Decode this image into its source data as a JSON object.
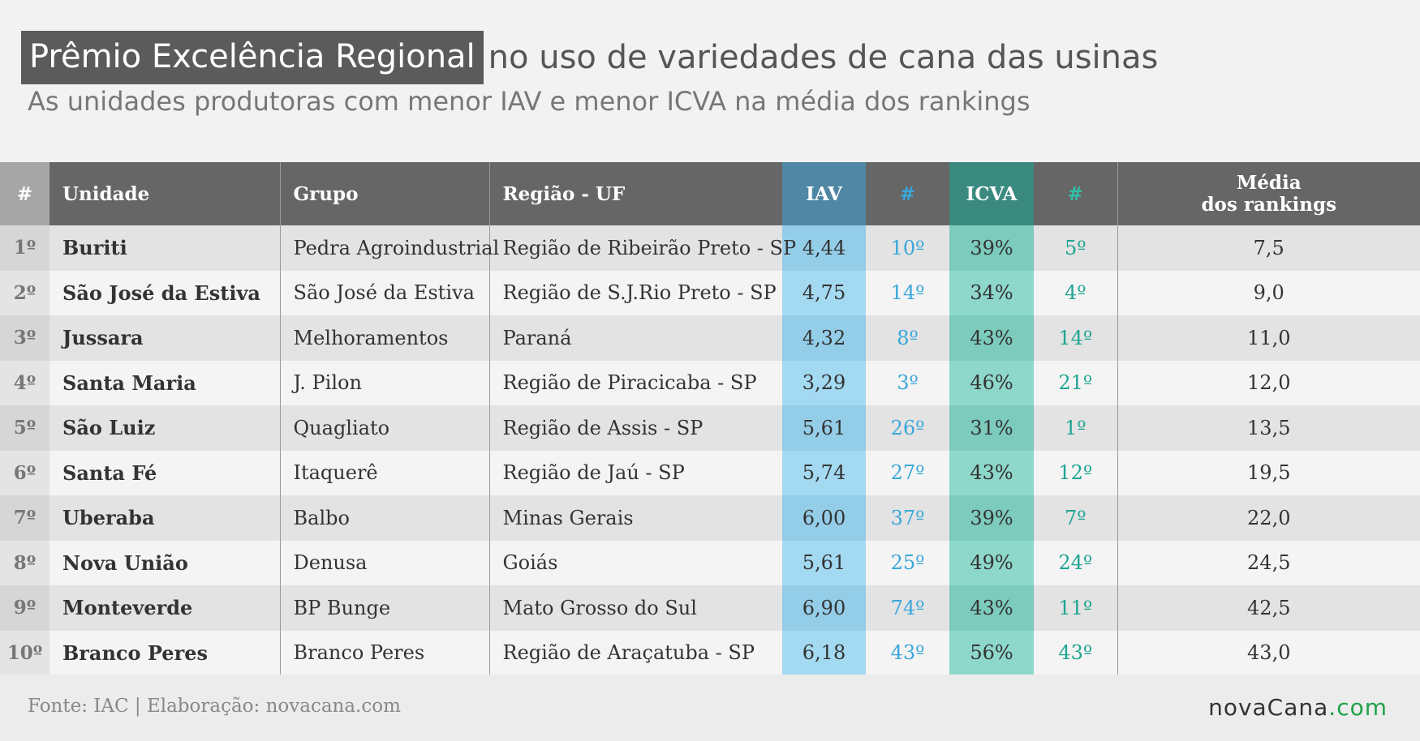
{
  "title": {
    "highlight": "Prêmio Excelência Regional",
    "rest": "no uso de variedades de cana das usinas",
    "subtitle": "As unidades produtoras com menor IAV e menor ICVA na média dos rankings"
  },
  "table": {
    "headers": {
      "rank": "#",
      "unidade": "Unidade",
      "grupo": "Grupo",
      "regiao": "Região - UF",
      "iav": "IAV",
      "iav_rank": "#",
      "icva": "ICVA",
      "icva_rank": "#",
      "media_line1": "Média",
      "media_line2": "dos rankings"
    },
    "rows": [
      {
        "rank": "1º",
        "unidade": "Buriti",
        "grupo": "Pedra Agroindustrial",
        "regiao": "Região de Ribeirão Preto - SP",
        "iav": "4,44",
        "iav_rank": "10º",
        "icva": "39%",
        "icva_rank": "5º",
        "media": "7,5"
      },
      {
        "rank": "2º",
        "unidade": "São José da Estiva",
        "grupo": "São José da Estiva",
        "regiao": "Região de S.J.Rio Preto - SP",
        "iav": "4,75",
        "iav_rank": "14º",
        "icva": "34%",
        "icva_rank": "4º",
        "media": "9,0"
      },
      {
        "rank": "3º",
        "unidade": "Jussara",
        "grupo": "Melhoramentos",
        "regiao": "Paraná",
        "iav": "4,32",
        "iav_rank": "8º",
        "icva": "43%",
        "icva_rank": "14º",
        "media": "11,0"
      },
      {
        "rank": "4º",
        "unidade": "Santa Maria",
        "grupo": "J. Pilon",
        "regiao": "Região de Piracicaba - SP",
        "iav": "3,29",
        "iav_rank": "3º",
        "icva": "46%",
        "icva_rank": "21º",
        "media": "12,0"
      },
      {
        "rank": "5º",
        "unidade": "São Luiz",
        "grupo": "Quagliato",
        "regiao": "Região de Assis - SP",
        "iav": "5,61",
        "iav_rank": "26º",
        "icva": "31%",
        "icva_rank": "1º",
        "media": "13,5"
      },
      {
        "rank": "6º",
        "unidade": "Santa Fé",
        "grupo": "Itaquerê",
        "regiao": "Região de Jaú - SP",
        "iav": "5,74",
        "iav_rank": "27º",
        "icva": "43%",
        "icva_rank": "12º",
        "media": "19,5"
      },
      {
        "rank": "7º",
        "unidade": "Uberaba",
        "grupo": "Balbo",
        "regiao": "Minas Gerais",
        "iav": "6,00",
        "iav_rank": "37º",
        "icva": "39%",
        "icva_rank": "7º",
        "media": "22,0"
      },
      {
        "rank": "8º",
        "unidade": "Nova União",
        "grupo": "Denusa",
        "regiao": "Goiás",
        "iav": "5,61",
        "iav_rank": "25º",
        "icva": "49%",
        "icva_rank": "24º",
        "media": "24,5"
      },
      {
        "rank": "9º",
        "unidade": "Monteverde",
        "grupo": "BP Bunge",
        "regiao": "Mato Grosso do Sul",
        "iav": "6,90",
        "iav_rank": "74º",
        "icva": "43%",
        "icva_rank": "11º",
        "media": "42,5"
      },
      {
        "rank": "10º",
        "unidade": "Branco Peres",
        "grupo": "Branco Peres",
        "regiao": "Região de Araçatuba - SP",
        "iav": "6,18",
        "iav_rank": "43º",
        "icva": "56%",
        "icva_rank": "43º",
        "media": "43,0"
      }
    ]
  },
  "footer": {
    "source": "Fonte: IAC | Elaboração: novacana.com",
    "logo_part1": "novaCana",
    "logo_part2": ".com"
  },
  "colors": {
    "header_bg": "#666666",
    "iav_header": "#4f87a4",
    "icva_header": "#3a8a80",
    "iav_cell": "#a4d9f2",
    "icva_cell": "#8ed8cb",
    "iav_rank_text": "#3aa7db",
    "icva_rank_text": "#1ea592",
    "logo_green": "#1fa24a"
  }
}
